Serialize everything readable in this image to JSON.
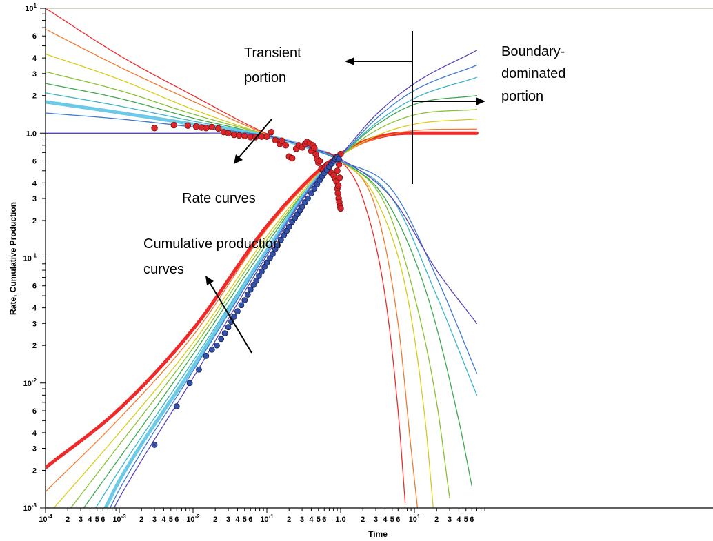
{
  "chart_data": {
    "type": "line",
    "title": "",
    "xlabel": "Time",
    "ylabel": "Rate, Cumulative Production",
    "x_scale": "log",
    "y_scale": "log",
    "xlim": [
      0.0001,
      70
    ],
    "ylim": [
      0.001,
      10
    ],
    "grid": false,
    "x_decade_labels": [
      {
        "value": 0.0001,
        "base": "10",
        "exp": "-4"
      },
      {
        "value": 0.001,
        "base": "10",
        "exp": "-3"
      },
      {
        "value": 0.01,
        "base": "10",
        "exp": "-2"
      },
      {
        "value": 0.1,
        "base": "10",
        "exp": "-1"
      },
      {
        "value": 1,
        "base": "1.0",
        "exp": ""
      },
      {
        "value": 10,
        "base": "10",
        "exp": "1"
      }
    ],
    "y_decade_labels": [
      {
        "value": 10,
        "base": "10",
        "exp": "1"
      },
      {
        "value": 1,
        "base": "1.0",
        "exp": ""
      },
      {
        "value": 0.1,
        "base": "10",
        "exp": "-1"
      },
      {
        "value": 0.01,
        "base": "10",
        "exp": "-2"
      },
      {
        "value": 0.001,
        "base": "10",
        "exp": "-3"
      }
    ],
    "x_minor_labels": [
      2,
      3,
      4,
      5,
      6
    ],
    "y_minor_labels": [
      2,
      3,
      4,
      6
    ],
    "annotations": [
      {
        "id": "transient",
        "lines": [
          "Transient",
          "portion"
        ]
      },
      {
        "id": "boundary",
        "lines": [
          "Boundary-",
          "dominated",
          "portion"
        ]
      },
      {
        "id": "rate",
        "lines": [
          "Rate curves"
        ]
      },
      {
        "id": "cumulative",
        "lines": [
          "Cumulative production",
          "curves"
        ]
      }
    ],
    "series": [
      {
        "kind": "rate",
        "color": "#ee2a2a",
        "points": [
          [
            0.0001,
            10
          ],
          [
            0.001,
            4.2
          ],
          [
            0.01,
            2
          ],
          [
            0.1,
            0.99
          ],
          [
            0.3,
            0.78
          ],
          [
            1,
            0.6
          ],
          [
            2,
            0.3
          ],
          [
            4,
            0.05
          ],
          [
            6,
            0.006
          ],
          [
            7.5,
            0.0011
          ]
        ]
      },
      {
        "kind": "rate",
        "color": "#f07a30",
        "points": [
          [
            0.0001,
            6.8
          ],
          [
            0.001,
            3.4
          ],
          [
            0.01,
            1.8
          ],
          [
            0.1,
            0.98
          ],
          [
            0.3,
            0.79
          ],
          [
            1,
            0.6
          ],
          [
            3,
            0.25
          ],
          [
            6,
            0.03
          ],
          [
            9,
            0.003
          ],
          [
            11,
            0.001
          ]
        ]
      },
      {
        "kind": "rate",
        "color": "#d8cc1a",
        "points": [
          [
            0.0001,
            4.3
          ],
          [
            0.001,
            2.7
          ],
          [
            0.01,
            1.55
          ],
          [
            0.1,
            0.97
          ],
          [
            0.3,
            0.8
          ],
          [
            1,
            0.6
          ],
          [
            3,
            0.3
          ],
          [
            8,
            0.05
          ],
          [
            14,
            0.005
          ],
          [
            18,
            0.001
          ]
        ]
      },
      {
        "kind": "rate",
        "color": "#88c232",
        "points": [
          [
            0.0001,
            3.1
          ],
          [
            0.001,
            2.2
          ],
          [
            0.01,
            1.42
          ],
          [
            0.1,
            0.97
          ],
          [
            0.3,
            0.8
          ],
          [
            1,
            0.6
          ],
          [
            4,
            0.27
          ],
          [
            10,
            0.05
          ],
          [
            20,
            0.007
          ],
          [
            30,
            0.0012
          ]
        ]
      },
      {
        "kind": "rate",
        "color": "#3da84e",
        "points": [
          [
            0.0001,
            2.5
          ],
          [
            0.001,
            1.9
          ],
          [
            0.01,
            1.32
          ],
          [
            0.1,
            0.96
          ],
          [
            0.3,
            0.8
          ],
          [
            1,
            0.6
          ],
          [
            4,
            0.3
          ],
          [
            15,
            0.05
          ],
          [
            40,
            0.005
          ],
          [
            60,
            0.0015
          ]
        ]
      },
      {
        "kind": "rate",
        "color": "#3cb4c6",
        "points": [
          [
            0.0001,
            2.1
          ],
          [
            0.001,
            1.65
          ],
          [
            0.01,
            1.25
          ],
          [
            0.1,
            0.96
          ],
          [
            0.3,
            0.8
          ],
          [
            1,
            0.6
          ],
          [
            5,
            0.3
          ],
          [
            20,
            0.05
          ],
          [
            70,
            0.008
          ]
        ]
      },
      {
        "kind": "rate",
        "color": "#6ccae6",
        "width": 5,
        "points": [
          [
            0.0001,
            1.78
          ],
          [
            0.001,
            1.46
          ],
          [
            0.01,
            1.18
          ],
          [
            0.1,
            0.95
          ],
          [
            0.3,
            0.8
          ],
          [
            0.6,
            0.7
          ]
        ]
      },
      {
        "kind": "rate",
        "color": "#3d7ad0",
        "points": [
          [
            0.0001,
            1.45
          ],
          [
            0.001,
            1.3
          ],
          [
            0.01,
            1.12
          ],
          [
            0.1,
            0.95
          ],
          [
            0.3,
            0.8
          ],
          [
            1,
            0.6
          ],
          [
            5,
            0.35
          ],
          [
            20,
            0.07
          ],
          [
            70,
            0.012
          ]
        ]
      },
      {
        "kind": "rate",
        "color": "#5a44b4",
        "points": [
          [
            0.0001,
            1.0
          ],
          [
            0.01,
            1.0
          ],
          [
            0.1,
            0.95
          ],
          [
            0.3,
            0.8
          ],
          [
            1,
            0.62
          ],
          [
            5,
            0.3
          ],
          [
            20,
            0.08
          ],
          [
            70,
            0.03
          ]
        ]
      },
      {
        "kind": "cumulative",
        "color": "#ee2a2a",
        "width": 5,
        "points": [
          [
            0.0001,
            0.0021
          ],
          [
            0.001,
            0.0062
          ],
          [
            0.01,
            0.027
          ],
          [
            0.1,
            0.18
          ],
          [
            0.5,
            0.5
          ],
          [
            1,
            0.68
          ],
          [
            2,
            0.85
          ],
          [
            5,
            0.98
          ],
          [
            10,
            1.0
          ],
          [
            70,
            1.0
          ]
        ]
      },
      {
        "kind": "cumulative",
        "color": "#f07a30",
        "points": [
          [
            0.0001,
            0.00135
          ],
          [
            0.001,
            0.0052
          ],
          [
            0.01,
            0.024
          ],
          [
            0.1,
            0.17
          ],
          [
            0.5,
            0.48
          ],
          [
            1,
            0.66
          ],
          [
            2,
            0.83
          ],
          [
            5,
            0.98
          ],
          [
            10,
            1.05
          ],
          [
            70,
            1.08
          ]
        ]
      },
      {
        "kind": "cumulative",
        "color": "#d8cc1a",
        "points": [
          [
            0.00013,
            0.001
          ],
          [
            0.001,
            0.004
          ],
          [
            0.01,
            0.021
          ],
          [
            0.1,
            0.15
          ],
          [
            0.5,
            0.47
          ],
          [
            1,
            0.66
          ],
          [
            3,
            0.95
          ],
          [
            10,
            1.18
          ],
          [
            70,
            1.3
          ]
        ]
      },
      {
        "kind": "cumulative",
        "color": "#88c232",
        "points": [
          [
            0.00022,
            0.001
          ],
          [
            0.001,
            0.0032
          ],
          [
            0.01,
            0.019
          ],
          [
            0.1,
            0.14
          ],
          [
            0.5,
            0.46
          ],
          [
            1,
            0.66
          ],
          [
            3,
            1.05
          ],
          [
            10,
            1.4
          ],
          [
            70,
            1.55
          ]
        ]
      },
      {
        "kind": "cumulative",
        "color": "#3da84e",
        "points": [
          [
            0.00033,
            0.001
          ],
          [
            0.001,
            0.0025
          ],
          [
            0.01,
            0.017
          ],
          [
            0.1,
            0.13
          ],
          [
            0.5,
            0.46
          ],
          [
            1,
            0.66
          ],
          [
            3,
            1.15
          ],
          [
            10,
            1.7
          ],
          [
            70,
            2.0
          ]
        ]
      },
      {
        "kind": "cumulative",
        "color": "#3cb4c6",
        "points": [
          [
            0.00048,
            0.001
          ],
          [
            0.001,
            0.002
          ],
          [
            0.01,
            0.015
          ],
          [
            0.1,
            0.12
          ],
          [
            0.5,
            0.45
          ],
          [
            1,
            0.66
          ],
          [
            3,
            1.2
          ],
          [
            10,
            1.9
          ],
          [
            70,
            2.8
          ]
        ]
      },
      {
        "kind": "cumulative",
        "color": "#6ccae6",
        "width": 5,
        "points": [
          [
            0.00065,
            0.001
          ],
          [
            0.001,
            0.00165
          ],
          [
            0.01,
            0.0135
          ],
          [
            0.1,
            0.115
          ],
          [
            0.5,
            0.45
          ],
          [
            0.9,
            0.6
          ]
        ]
      },
      {
        "kind": "cumulative",
        "color": "#3d7ad0",
        "points": [
          [
            0.00075,
            0.001
          ],
          [
            0.001,
            0.0014
          ],
          [
            0.01,
            0.0125
          ],
          [
            0.1,
            0.11
          ],
          [
            0.5,
            0.45
          ],
          [
            1,
            0.66
          ],
          [
            3,
            1.3
          ],
          [
            10,
            2.2
          ],
          [
            70,
            3.5
          ]
        ]
      },
      {
        "kind": "cumulative",
        "color": "#5a44b4",
        "points": [
          [
            0.00085,
            0.001
          ],
          [
            0.001,
            0.0012
          ],
          [
            0.01,
            0.011
          ],
          [
            0.1,
            0.105
          ],
          [
            0.5,
            0.44
          ],
          [
            1,
            0.67
          ],
          [
            3,
            1.4
          ],
          [
            10,
            2.5
          ],
          [
            70,
            4.6
          ]
        ]
      }
    ],
    "rate_points": [
      [
        0.003,
        1.1
      ],
      [
        0.0055,
        1.16
      ],
      [
        0.0085,
        1.15
      ],
      [
        0.011,
        1.13
      ],
      [
        0.013,
        1.11
      ],
      [
        0.015,
        1.1
      ],
      [
        0.018,
        1.12
      ],
      [
        0.022,
        1.09
      ],
      [
        0.026,
        1.02
      ],
      [
        0.03,
        1.0
      ],
      [
        0.036,
        0.97
      ],
      [
        0.042,
        0.96
      ],
      [
        0.05,
        0.95
      ],
      [
        0.06,
        0.93
      ],
      [
        0.07,
        0.93
      ],
      [
        0.085,
        0.94
      ],
      [
        0.1,
        0.94
      ],
      [
        0.115,
        1.02
      ],
      [
        0.13,
        0.88
      ],
      [
        0.15,
        0.82
      ],
      [
        0.16,
        0.87
      ],
      [
        0.18,
        0.8
      ],
      [
        0.2,
        0.65
      ],
      [
        0.22,
        0.63
      ],
      [
        0.25,
        0.75
      ],
      [
        0.27,
        0.8
      ],
      [
        0.3,
        0.77
      ],
      [
        0.33,
        0.82
      ],
      [
        0.35,
        0.85
      ],
      [
        0.38,
        0.83
      ],
      [
        0.4,
        0.72
      ],
      [
        0.42,
        0.8
      ],
      [
        0.44,
        0.76
      ],
      [
        0.46,
        0.68
      ],
      [
        0.48,
        0.62
      ],
      [
        0.5,
        0.58
      ],
      [
        0.52,
        0.6
      ],
      [
        0.55,
        0.52
      ],
      [
        0.58,
        0.5
      ],
      [
        0.62,
        0.54
      ],
      [
        0.66,
        0.56
      ],
      [
        0.7,
        0.5
      ],
      [
        0.75,
        0.48
      ],
      [
        0.8,
        0.46
      ],
      [
        0.85,
        0.43
      ],
      [
        0.88,
        0.41
      ],
      [
        0.9,
        0.36
      ],
      [
        0.92,
        0.33
      ],
      [
        0.94,
        0.3
      ],
      [
        0.96,
        0.28
      ],
      [
        0.98,
        0.26
      ],
      [
        1.0,
        0.25
      ],
      [
        0.93,
        0.38
      ],
      [
        0.97,
        0.44
      ],
      [
        0.87,
        0.64
      ],
      [
        1.0,
        0.68
      ],
      [
        0.95,
        0.56
      ],
      [
        0.9,
        0.5
      ]
    ],
    "cumulative_points": [
      [
        0.003,
        0.0032
      ],
      [
        0.006,
        0.0065
      ],
      [
        0.009,
        0.01
      ],
      [
        0.012,
        0.0128
      ],
      [
        0.015,
        0.0165
      ],
      [
        0.018,
        0.0185
      ],
      [
        0.021,
        0.02
      ],
      [
        0.024,
        0.0225
      ],
      [
        0.027,
        0.025
      ],
      [
        0.03,
        0.028
      ],
      [
        0.033,
        0.031
      ],
      [
        0.036,
        0.034
      ],
      [
        0.04,
        0.0375
      ],
      [
        0.045,
        0.042
      ],
      [
        0.05,
        0.046
      ],
      [
        0.055,
        0.051
      ],
      [
        0.06,
        0.056
      ],
      [
        0.066,
        0.061
      ],
      [
        0.072,
        0.066
      ],
      [
        0.078,
        0.072
      ],
      [
        0.085,
        0.078
      ],
      [
        0.093,
        0.085
      ],
      [
        0.1,
        0.092
      ],
      [
        0.11,
        0.1
      ],
      [
        0.12,
        0.108
      ],
      [
        0.13,
        0.118
      ],
      [
        0.14,
        0.127
      ],
      [
        0.155,
        0.14
      ],
      [
        0.17,
        0.152
      ],
      [
        0.185,
        0.165
      ],
      [
        0.2,
        0.178
      ],
      [
        0.22,
        0.195
      ],
      [
        0.24,
        0.21
      ],
      [
        0.26,
        0.225
      ],
      [
        0.28,
        0.24
      ],
      [
        0.3,
        0.258
      ],
      [
        0.33,
        0.28
      ],
      [
        0.36,
        0.3
      ],
      [
        0.4,
        0.33
      ],
      [
        0.44,
        0.36
      ],
      [
        0.48,
        0.39
      ],
      [
        0.52,
        0.42
      ],
      [
        0.56,
        0.45
      ],
      [
        0.6,
        0.48
      ],
      [
        0.65,
        0.51
      ],
      [
        0.7,
        0.54
      ],
      [
        0.75,
        0.57
      ],
      [
        0.8,
        0.6
      ],
      [
        0.85,
        0.62
      ],
      [
        0.9,
        0.64
      ],
      [
        0.95,
        0.62
      ]
    ]
  }
}
